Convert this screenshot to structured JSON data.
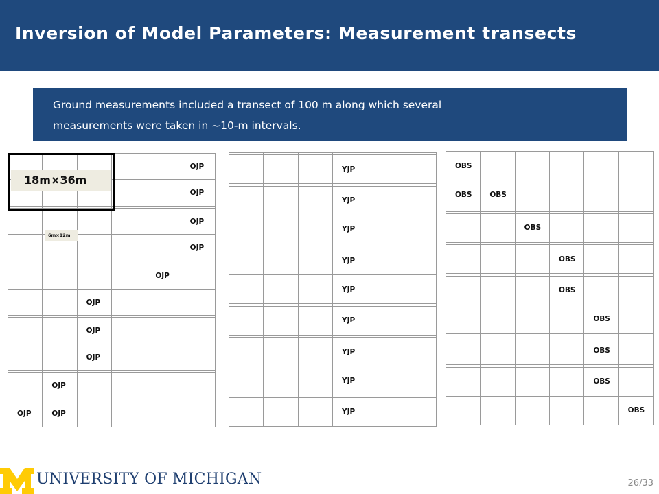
{
  "title": "Inversion of Model Parameters: Measurement transects",
  "callout": {
    "line1": "Ground measurements included a transect of 100 m along which several",
    "line2": "measurements were taken in ~10-m intervals."
  },
  "grids": [
    {
      "name": "ojp",
      "rows": [
        [
          "",
          "",
          "",
          "",
          "",
          "OJP"
        ],
        [
          "",
          "",
          "",
          "",
          "",
          "OJP"
        ],
        [
          "",
          "",
          "",
          "",
          "",
          ""
        ],
        [
          "",
          "",
          "",
          "",
          "",
          "OJP"
        ],
        [
          "",
          "",
          "",
          "",
          "",
          "OJP"
        ],
        [
          "",
          "",
          "",
          "",
          "",
          ""
        ],
        [
          "",
          "",
          "",
          "",
          "OJP",
          ""
        ],
        [
          "",
          "",
          "OJP",
          "",
          "",
          ""
        ],
        [
          "",
          "",
          "",
          "",
          "",
          ""
        ],
        [
          "",
          "",
          "OJP",
          "",
          "",
          ""
        ],
        [
          "",
          "",
          "OJP",
          "",
          "",
          ""
        ],
        [
          "",
          "",
          "",
          "",
          "",
          ""
        ],
        [
          "",
          "OJP",
          "",
          "",
          "",
          ""
        ],
        [
          "",
          "",
          "",
          "",
          "",
          ""
        ],
        [
          "OJP",
          "OJP",
          "",
          "",
          "",
          ""
        ]
      ]
    },
    {
      "name": "yjp",
      "rows": [
        [
          "",
          "",
          "",
          "",
          "",
          ""
        ],
        [
          "",
          "",
          "",
          "YJP",
          "",
          ""
        ],
        [
          "",
          "",
          "",
          "",
          "",
          ""
        ],
        [
          "",
          "",
          "",
          "YJP",
          "",
          ""
        ],
        [
          "",
          "",
          "",
          "YJP",
          "",
          ""
        ],
        [
          "",
          "",
          "",
          "",
          "",
          ""
        ],
        [
          "",
          "",
          "",
          "YJP",
          "",
          ""
        ],
        [
          "",
          "",
          "",
          "YJP",
          "",
          ""
        ],
        [
          "",
          "",
          "",
          "",
          "",
          ""
        ],
        [
          "",
          "",
          "",
          "YJP",
          "",
          ""
        ],
        [
          "",
          "",
          "",
          "",
          "",
          ""
        ],
        [
          "",
          "",
          "",
          "YJP",
          "",
          ""
        ],
        [
          "",
          "",
          "",
          "YJP",
          "",
          ""
        ],
        [
          "",
          "",
          "",
          "",
          "",
          ""
        ],
        [
          "",
          "",
          "",
          "YJP",
          "",
          ""
        ]
      ]
    },
    {
      "name": "obs",
      "rows": [
        [
          "OBS",
          "",
          "",
          "",
          "",
          ""
        ],
        [
          "OBS",
          "OBS",
          "",
          "",
          "",
          ""
        ],
        [
          "",
          "",
          "",
          "",
          "",
          ""
        ],
        [
          "",
          "",
          "",
          "",
          "",
          ""
        ],
        [
          "",
          "",
          "OBS",
          "",
          "",
          ""
        ],
        [
          "",
          "",
          "",
          "",
          "",
          ""
        ],
        [
          "",
          "",
          "",
          "OBS",
          "",
          ""
        ],
        [
          "",
          "",
          "",
          "",
          "",
          ""
        ],
        [
          "",
          "",
          "",
          "OBS",
          "",
          ""
        ],
        [
          "",
          "",
          "",
          "",
          "OBS",
          ""
        ],
        [
          "",
          "",
          "",
          "",
          "",
          ""
        ],
        [
          "",
          "",
          "",
          "",
          "OBS",
          ""
        ],
        [
          "",
          "",
          "",
          "",
          "",
          ""
        ],
        [
          "",
          "",
          "",
          "",
          "OBS",
          ""
        ],
        [
          "",
          "",
          "",
          "",
          "",
          "OBS"
        ]
      ]
    }
  ],
  "plot_labels": {
    "large": "18m×36m",
    "small": "6m×12m"
  },
  "footer": {
    "university": "UNIVERSITY OF MICHIGAN",
    "page": "26/33"
  },
  "colors": {
    "header_blue": "#1f497d",
    "maize": "#ffcb05",
    "label_fill": "#eeece1"
  }
}
